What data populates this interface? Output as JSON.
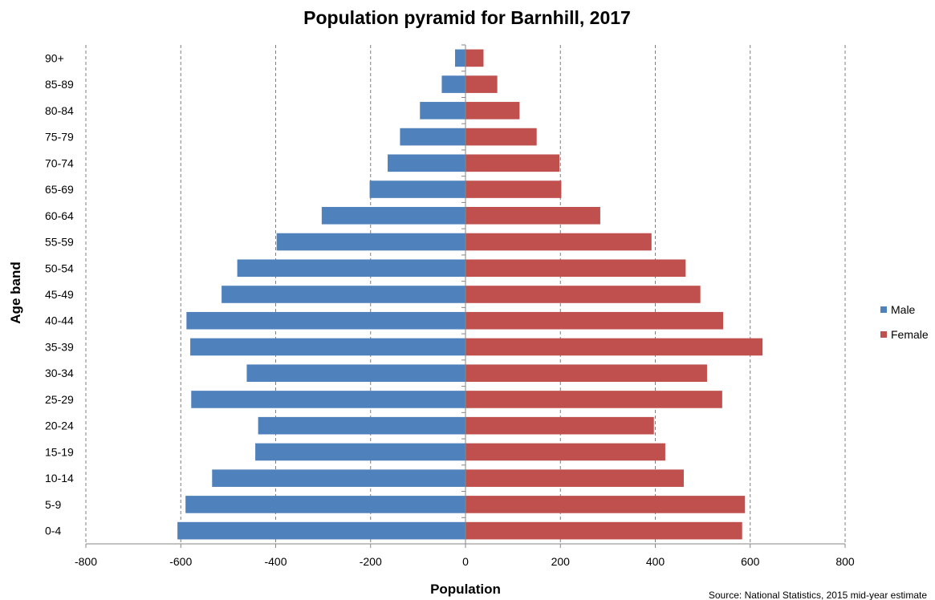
{
  "chart_data": {
    "type": "bar",
    "orientation": "horizontal",
    "title": "Population pyramid for Barnhill, 2017",
    "xlabel": "Population",
    "ylabel": "Age band",
    "xlim": [
      -800,
      800
    ],
    "xticks": [
      -800,
      -600,
      -400,
      -200,
      0,
      200,
      400,
      600,
      800
    ],
    "grid": "vertical dashed",
    "legend_position": "right",
    "categories": [
      "0-4",
      "5-9",
      "10-14",
      "15-19",
      "20-24",
      "25-29",
      "30-34",
      "35-39",
      "40-44",
      "45-49",
      "50-54",
      "55-59",
      "60-64",
      "65-69",
      "70-74",
      "75-79",
      "80-84",
      "85-89",
      "90+"
    ],
    "series": [
      {
        "name": "Male",
        "color": "#4F81BD",
        "values": [
          -607,
          -590,
          -534,
          -443,
          -437,
          -578,
          -461,
          -580,
          -588,
          -514,
          -481,
          -398,
          -303,
          -202,
          -164,
          -138,
          -96,
          -50,
          -22
        ]
      },
      {
        "name": "Female",
        "color": "#C0504D",
        "values": [
          583,
          589,
          460,
          421,
          397,
          541,
          509,
          626,
          543,
          495,
          464,
          392,
          284,
          202,
          198,
          150,
          114,
          67,
          38
        ]
      }
    ],
    "source": "Source: National Statistics, 2015 mid-year estimate"
  }
}
